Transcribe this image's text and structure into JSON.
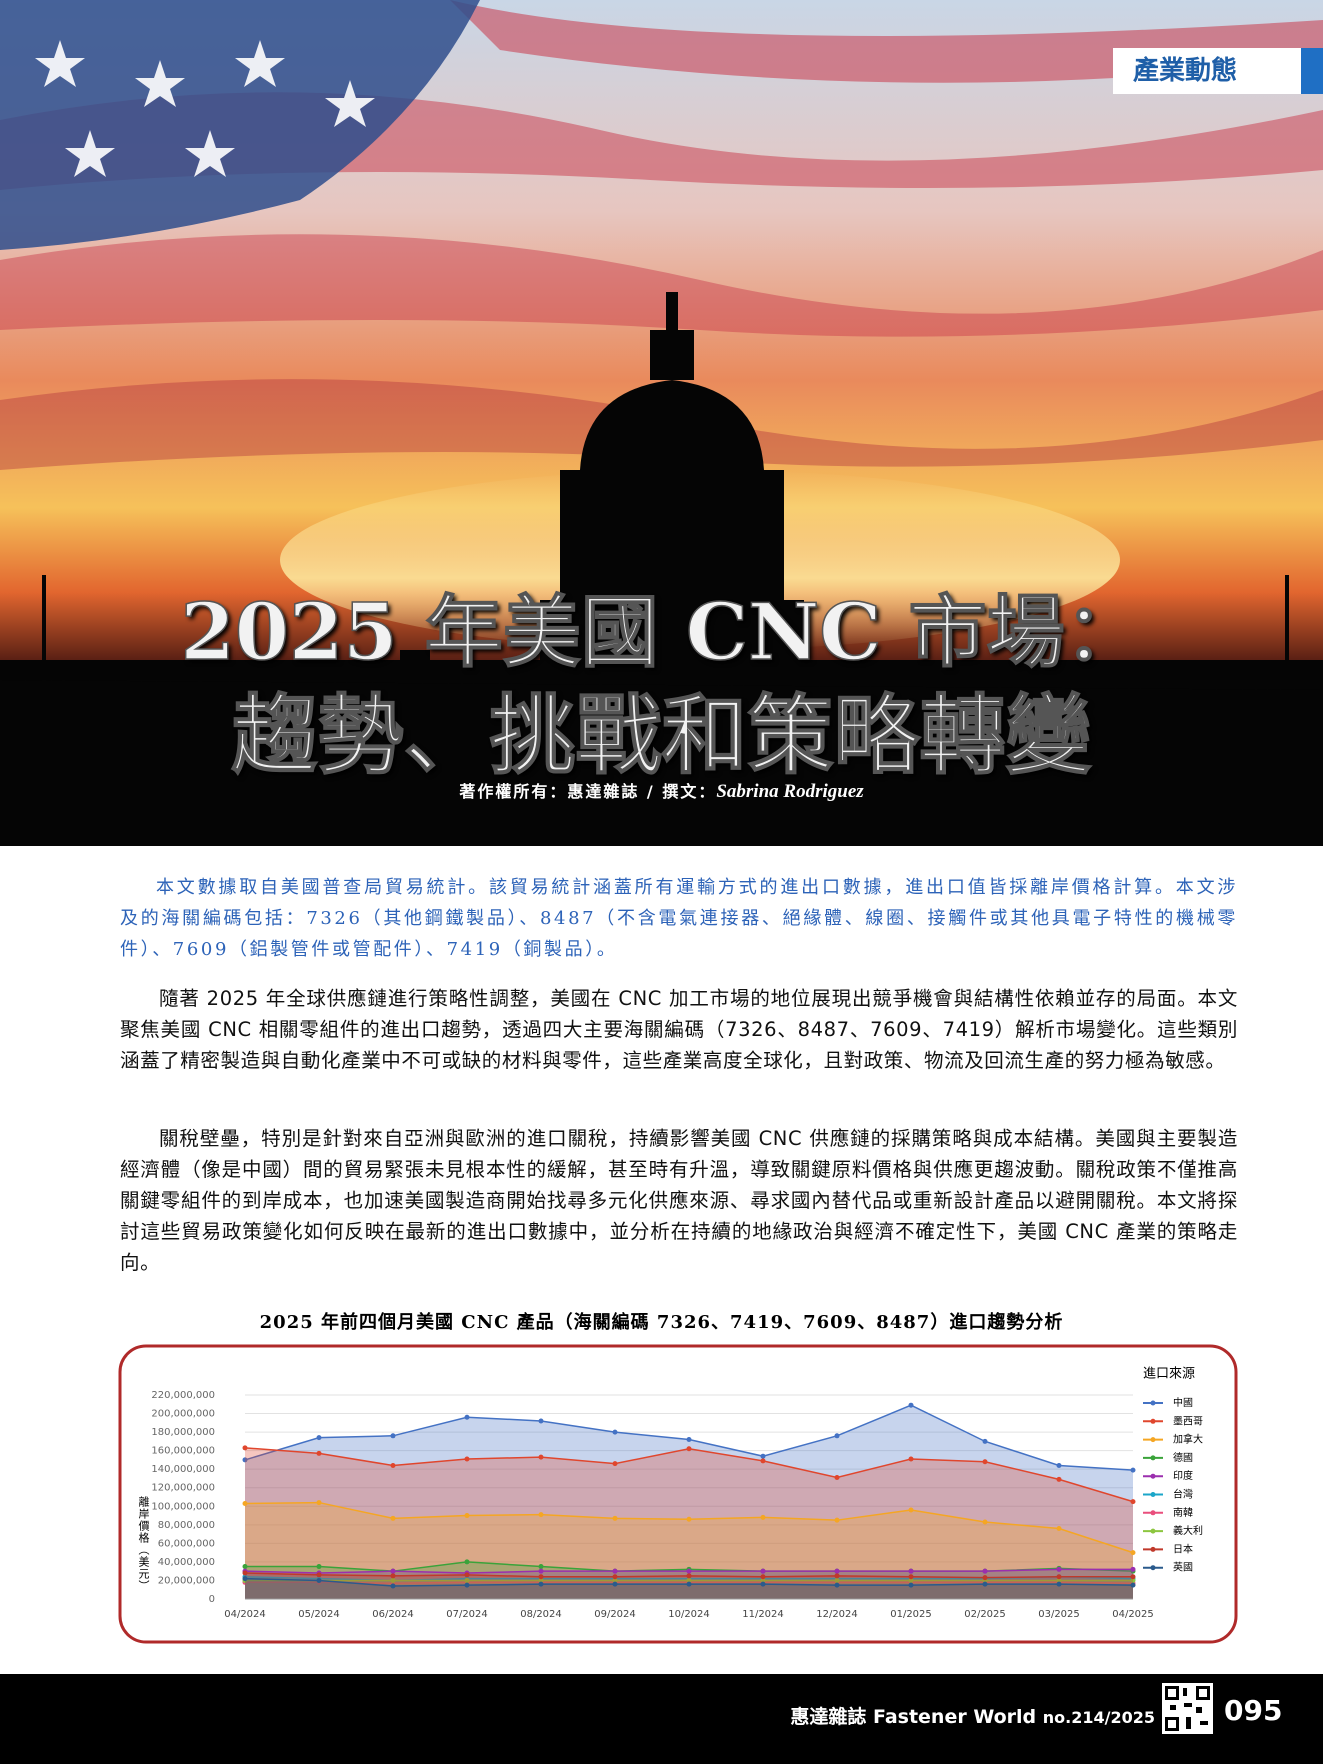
{
  "header": {
    "section": "產業動態",
    "title_lines": [
      "2025 年美國 CNC 市場：",
      "趨勢、挑戰和策略轉變"
    ],
    "byline": "著作權所有：惠達雜誌 / 撰文：",
    "author": "Sabrina Rodriguez"
  },
  "intro": "本文數據取自美國普查局貿易統計。該貿易統計涵蓋所有運輸方式的進出口數據，進出口值皆採離岸價格計算。本文涉及的海關編碼包括：7326（其他鋼鐵製品）、8487（不含電氣連接器、絕緣體、線圈、接觸件或其他具電子特性的機械零件）、7609（鋁製管件或管配件）、7419（銅製品）。",
  "paragraphs": [
    "隨著 2025 年全球供應鏈進行策略性調整，美國在 CNC 加工市場的地位展現出競爭機會與結構性依賴並存的局面。本文聚焦美國 CNC 相關零組件的進出口趨勢，透過四大主要海關編碼（7326、8487、7609、7419）解析市場變化。這些類別涵蓋了精密製造與自動化產業中不可或缺的材料與零件，這些產業高度全球化，且對政策、物流及回流生產的努力極為敏感。",
    "關稅壁壘，特別是針對來自亞洲與歐洲的進口關稅，持續影響美國 CNC 供應鏈的採購策略與成本結構。美國與主要製造經濟體（像是中國）間的貿易緊張未見根本性的緩解，甚至時有升溫，導致關鍵原料價格與供應更趨波動。關稅政策不僅推高關鍵零組件的到岸成本，也加速美國製造商開始找尋多元化供應來源、尋求國內替代品或重新設計產品以避開關稅。本文將探討這些貿易政策變化如何反映在最新的進出口數據中，並分析在持續的地緣政治與經濟不確定性下，美國 CNC 產業的策略走向。"
  ],
  "chart_data": {
    "type": "area",
    "title": "2025 年前四個月美國 CNC 產品（海關編碼 7326、7419、7609、8487）進口趨勢分析",
    "y_label": "離岸價格（美元）",
    "legend_title": "進口來源",
    "categories": [
      "04/2024",
      "05/2024",
      "06/2024",
      "07/2024",
      "08/2024",
      "09/2024",
      "10/2024",
      "11/2024",
      "12/2024",
      "01/2025",
      "02/2025",
      "03/2025",
      "04/2025"
    ],
    "ylim": [
      0,
      220000000
    ],
    "yticks": [
      0,
      {
        "value": 20000000,
        "label": "20,000,000"
      },
      {
        "value": 40000000,
        "label": "40,000,000"
      },
      {
        "value": 60000000,
        "label": "60,000,000"
      },
      {
        "value": 80000000,
        "label": "80,000,000"
      },
      {
        "value": 100000000,
        "label": "100,000,000"
      },
      {
        "value": 120000000,
        "label": "120,000,000"
      },
      {
        "value": 140000000,
        "label": "140,000,000"
      },
      {
        "value": 160000000,
        "label": "160,000,000"
      },
      {
        "value": 180000000,
        "label": "180,000,000"
      },
      {
        "value": 200000000,
        "label": "200,000,000"
      },
      {
        "value": 220000000,
        "label": "220,000,000"
      }
    ],
    "grid": true,
    "series": [
      {
        "name": "中國",
        "color": "#4472c4",
        "values": [
          150000000,
          174000000,
          176000000,
          196000000,
          192000000,
          180000000,
          172000000,
          154000000,
          176000000,
          209000000,
          170000000,
          144000000,
          139000000
        ]
      },
      {
        "name": "墨西哥",
        "color": "#e0462d",
        "values": [
          163000000,
          157000000,
          144000000,
          151000000,
          153000000,
          146000000,
          162000000,
          149000000,
          131000000,
          151000000,
          148000000,
          129000000,
          105000000
        ]
      },
      {
        "name": "加拿大",
        "color": "#f5a623",
        "values": [
          103000000,
          104000000,
          87000000,
          90000000,
          91000000,
          87000000,
          86000000,
          88000000,
          85000000,
          96000000,
          83000000,
          76000000,
          50000000
        ]
      },
      {
        "name": "德國",
        "color": "#3aa33a",
        "values": [
          35000000,
          35000000,
          30000000,
          40000000,
          35000000,
          30000000,
          32000000,
          30000000,
          30000000,
          30000000,
          30000000,
          33000000,
          30000000
        ]
      },
      {
        "name": "印度",
        "color": "#9b2fae",
        "values": [
          30000000,
          28000000,
          30000000,
          28000000,
          30000000,
          30000000,
          30000000,
          30000000,
          30000000,
          30000000,
          30000000,
          32000000,
          32000000
        ]
      },
      {
        "name": "台灣",
        "color": "#1ba6c9",
        "values": [
          24000000,
          22000000,
          20000000,
          22000000,
          22000000,
          22000000,
          22000000,
          22000000,
          22000000,
          22000000,
          22000000,
          24000000,
          22000000
        ]
      },
      {
        "name": "南韓",
        "color": "#e94f7d",
        "values": [
          18000000,
          18000000,
          17000000,
          18000000,
          18000000,
          18000000,
          18000000,
          18000000,
          18000000,
          18000000,
          18000000,
          18000000,
          17000000
        ]
      },
      {
        "name": "義大利",
        "color": "#8cc63f",
        "values": [
          20000000,
          20000000,
          20000000,
          20000000,
          20000000,
          20000000,
          20000000,
          20000000,
          20000000,
          20000000,
          20000000,
          20000000,
          20000000
        ]
      },
      {
        "name": "日本",
        "color": "#c0392b",
        "values": [
          28000000,
          26000000,
          25000000,
          26000000,
          24000000,
          24000000,
          25000000,
          24000000,
          25000000,
          24000000,
          23000000,
          24000000,
          24000000
        ]
      },
      {
        "name": "英國",
        "color": "#2a5a8c",
        "values": [
          22000000,
          20000000,
          14000000,
          15000000,
          16000000,
          16000000,
          16000000,
          16000000,
          15000000,
          15000000,
          16000000,
          16000000,
          15000000
        ]
      }
    ]
  },
  "footer": {
    "magazine": "惠達雜誌 Fastener World",
    "issue": "no.214/2025",
    "page": "095"
  }
}
